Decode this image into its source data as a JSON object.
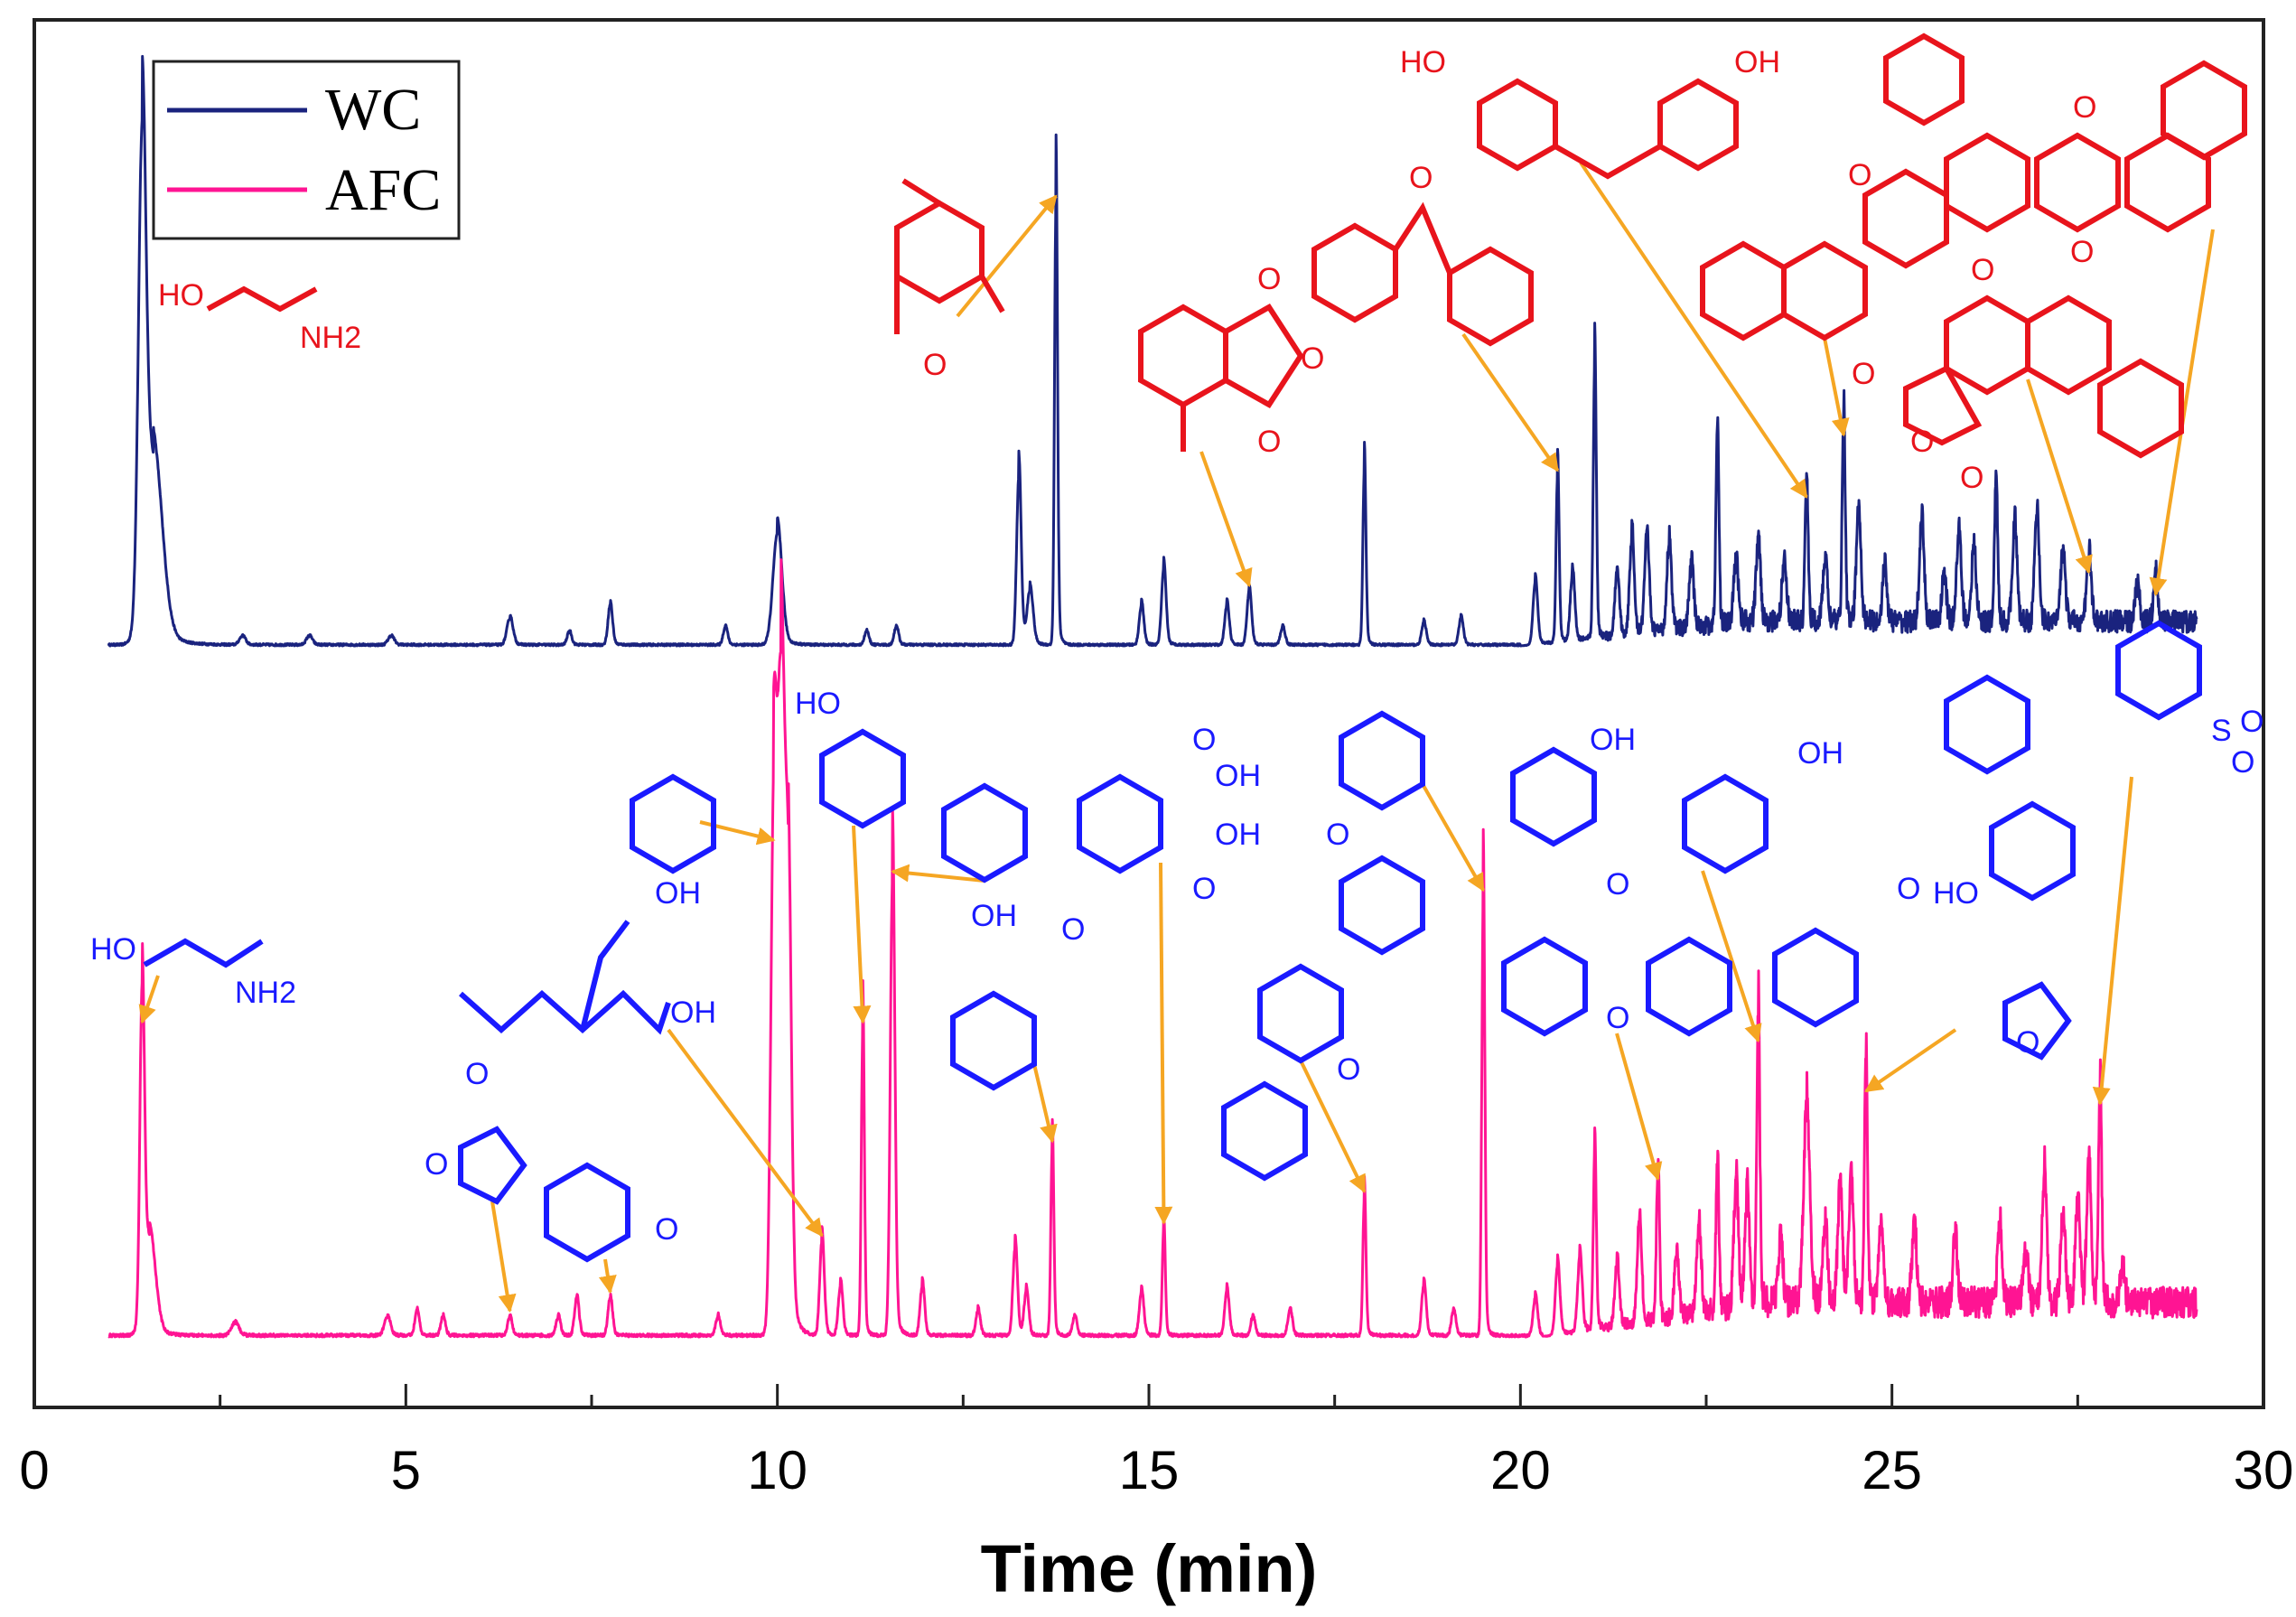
{
  "chart_data": {
    "type": "line",
    "title": "",
    "xlabel": "Time (min)",
    "ylabel": "",
    "xlim": [
      0,
      30
    ],
    "xticks": [
      "0",
      "5",
      "10",
      "15",
      "20",
      "25",
      "30"
    ],
    "grid": false,
    "legend_position": "top-left",
    "series": [
      {
        "name": "WC",
        "color": "#1a237e",
        "baseline": 0,
        "noise_start": 20.0,
        "peaks": [
          [
            1.45,
            100,
            0.05
          ],
          [
            1.6,
            40,
            0.12
          ],
          [
            2.8,
            2,
            0.04
          ],
          [
            3.7,
            2,
            0.04
          ],
          [
            4.8,
            2,
            0.04
          ],
          [
            6.4,
            6,
            0.04
          ],
          [
            7.2,
            3,
            0.03
          ],
          [
            7.75,
            9,
            0.03
          ],
          [
            9.3,
            4,
            0.03
          ],
          [
            10.0,
            25,
            0.06
          ],
          [
            11.2,
            3,
            0.03
          ],
          [
            11.6,
            4,
            0.03
          ],
          [
            13.25,
            38,
            0.03
          ],
          [
            13.4,
            12,
            0.04
          ],
          [
            13.75,
            100,
            0.02
          ],
          [
            14.9,
            9,
            0.03
          ],
          [
            15.2,
            17,
            0.03
          ],
          [
            16.05,
            9,
            0.03
          ],
          [
            16.35,
            12,
            0.03
          ],
          [
            16.8,
            4,
            0.03
          ],
          [
            17.9,
            40,
            0.02
          ],
          [
            18.7,
            5,
            0.03
          ],
          [
            19.2,
            6,
            0.03
          ],
          [
            20.2,
            14,
            0.03
          ],
          [
            20.5,
            38,
            0.02
          ],
          [
            20.7,
            15,
            0.03
          ],
          [
            21.0,
            62,
            0.02
          ],
          [
            21.3,
            14,
            0.03
          ],
          [
            21.5,
            22,
            0.03
          ],
          [
            21.7,
            22,
            0.03
          ],
          [
            22.0,
            20,
            0.03
          ],
          [
            22.3,
            14,
            0.03
          ],
          [
            22.65,
            43,
            0.02
          ],
          [
            22.9,
            14,
            0.03
          ],
          [
            23.2,
            18,
            0.03
          ],
          [
            23.55,
            14,
            0.03
          ],
          [
            23.85,
            32,
            0.02
          ],
          [
            24.1,
            14,
            0.03
          ],
          [
            24.35,
            46,
            0.02
          ],
          [
            24.55,
            25,
            0.03
          ],
          [
            24.9,
            12,
            0.03
          ],
          [
            25.4,
            22,
            0.03
          ],
          [
            25.7,
            10,
            0.03
          ],
          [
            25.9,
            20,
            0.03
          ],
          [
            26.1,
            16,
            0.03
          ],
          [
            26.4,
            32,
            0.02
          ],
          [
            26.65,
            22,
            0.03
          ],
          [
            26.95,
            24,
            0.03
          ],
          [
            27.3,
            16,
            0.03
          ],
          [
            27.65,
            15,
            0.03
          ],
          [
            28.3,
            8,
            0.03
          ],
          [
            28.55,
            10,
            0.03
          ]
        ]
      },
      {
        "name": "AFC",
        "color": "#ff1493",
        "baseline": 0,
        "noise_start": 20.3,
        "peaks": [
          [
            1.45,
            49,
            0.03
          ],
          [
            1.55,
            15,
            0.08
          ],
          [
            2.7,
            2,
            0.05
          ],
          [
            4.75,
            3,
            0.04
          ],
          [
            5.15,
            4,
            0.03
          ],
          [
            5.5,
            3,
            0.03
          ],
          [
            6.4,
            3,
            0.03
          ],
          [
            7.05,
            3,
            0.03
          ],
          [
            7.3,
            6,
            0.03
          ],
          [
            7.75,
            6,
            0.03
          ],
          [
            9.2,
            3,
            0.03
          ],
          [
            9.95,
            78,
            0.04
          ],
          [
            10.05,
            100,
            0.05
          ],
          [
            10.15,
            60,
            0.04
          ],
          [
            10.6,
            15,
            0.03
          ],
          [
            10.85,
            8,
            0.03
          ],
          [
            11.15,
            49,
            0.02
          ],
          [
            11.55,
            73,
            0.03
          ],
          [
            11.95,
            8,
            0.03
          ],
          [
            12.7,
            4,
            0.03
          ],
          [
            13.2,
            14,
            0.03
          ],
          [
            13.35,
            7,
            0.03
          ],
          [
            13.7,
            30,
            0.02
          ],
          [
            14.0,
            3,
            0.03
          ],
          [
            14.9,
            7,
            0.03
          ],
          [
            15.2,
            17,
            0.02
          ],
          [
            16.05,
            7,
            0.03
          ],
          [
            16.4,
            3,
            0.03
          ],
          [
            16.9,
            4,
            0.03
          ],
          [
            17.9,
            22,
            0.02
          ],
          [
            18.7,
            8,
            0.03
          ],
          [
            19.1,
            4,
            0.03
          ],
          [
            19.5,
            70,
            0.02
          ],
          [
            20.2,
            6,
            0.03
          ],
          [
            20.5,
            11,
            0.03
          ],
          [
            20.8,
            12,
            0.03
          ],
          [
            21.0,
            28,
            0.02
          ],
          [
            21.3,
            10,
            0.03
          ],
          [
            21.6,
            16,
            0.03
          ],
          [
            21.85,
            24,
            0.02
          ],
          [
            22.1,
            10,
            0.03
          ],
          [
            22.4,
            14,
            0.03
          ],
          [
            22.65,
            23,
            0.02
          ],
          [
            22.9,
            20,
            0.03
          ],
          [
            23.05,
            18,
            0.03
          ],
          [
            23.2,
            46,
            0.02
          ],
          [
            23.5,
            10,
            0.03
          ],
          [
            23.85,
            31,
            0.04
          ],
          [
            24.1,
            12,
            0.03
          ],
          [
            24.3,
            18,
            0.03
          ],
          [
            24.45,
            20,
            0.03
          ],
          [
            24.65,
            38,
            0.02
          ],
          [
            24.85,
            12,
            0.03
          ],
          [
            25.3,
            12,
            0.03
          ],
          [
            25.85,
            10,
            0.03
          ],
          [
            26.45,
            12,
            0.03
          ],
          [
            26.8,
            8,
            0.03
          ],
          [
            27.05,
            20,
            0.03
          ],
          [
            27.3,
            14,
            0.03
          ],
          [
            27.5,
            16,
            0.03
          ],
          [
            27.65,
            22,
            0.03
          ],
          [
            27.8,
            36,
            0.02
          ],
          [
            28.1,
            6,
            0.03
          ]
        ]
      }
    ],
    "annotations": {
      "WC": [
        {
          "compound": "2-aminoethanol",
          "labels": [
            "HO",
            "NH2"
          ],
          "peak_time": 1.45
        },
        {
          "compound": "2,5-dimethylbenzaldehyde",
          "labels": [
            "O"
          ],
          "peak_time": 13.75
        },
        {
          "compound": "3-methylphthalic anhydride",
          "labels": [
            "O",
            "O",
            "O"
          ],
          "peak_time": 16.35
        },
        {
          "compound": "9-fluorenone",
          "labels": [
            "O"
          ],
          "peak_time": 20.5
        },
        {
          "compound": "4,4'-dihydroxydiphenylmethane",
          "labels": [
            "HO",
            "OH"
          ],
          "peak_time": 23.85
        },
        {
          "compound": "benzo[h]flavone",
          "labels": [
            "O",
            "O"
          ],
          "peak_time": 24.35
        },
        {
          "compound": "phenanthrene-dicarboxylic anhydride",
          "labels": [
            "O",
            "O",
            "O"
          ],
          "peak_time": 27.65
        },
        {
          "compound": "benzo[a]xanthone",
          "labels": [
            "O",
            "O"
          ],
          "peak_time": 28.55
        }
      ],
      "AFC": [
        {
          "compound": "2-aminoethanol",
          "labels": [
            "HO",
            "NH2"
          ],
          "peak_time": 1.45
        },
        {
          "compound": "3-furaldehyde",
          "labels": [
            "O",
            "O"
          ],
          "peak_time": 6.4
        },
        {
          "compound": "anisole",
          "labels": [
            "O"
          ],
          "peak_time": 7.75
        },
        {
          "compound": "phenol",
          "labels": [
            "OH"
          ],
          "peak_time": 9.95
        },
        {
          "compound": "2-ethylhexanol",
          "labels": [
            "OH"
          ],
          "peak_time": 10.6
        },
        {
          "compound": "o-cresol",
          "labels": [
            "HO"
          ],
          "peak_time": 11.15
        },
        {
          "compound": "p-cresol",
          "labels": [
            "OH"
          ],
          "peak_time": 11.55
        },
        {
          "compound": "2,4-dimethylbenzaldehyde",
          "labels": [
            "O"
          ],
          "peak_time": 13.7
        },
        {
          "compound": "phthalic acid",
          "labels": [
            "O",
            "OH",
            "O",
            "OH"
          ],
          "peak_time": 15.2
        },
        {
          "compound": "dibenzofuran",
          "labels": [
            "O"
          ],
          "peak_time": 17.9
        },
        {
          "compound": "xanthene",
          "labels": [
            "O"
          ],
          "peak_time": 19.5
        },
        {
          "compound": "xanthone",
          "labels": [
            "O",
            "O"
          ],
          "peak_time": 21.85
        },
        {
          "compound": "2,4'-dihydroxydiphenylmethane",
          "labels": [
            "OH",
            "OH"
          ],
          "peak_time": 23.2
        },
        {
          "compound": "2-(furylmethylene)indanone",
          "labels": [
            "O",
            "O"
          ],
          "peak_time": 24.65
        },
        {
          "compound": "phenol-substituted benzothiophene dioxide",
          "labels": [
            "HO",
            "S",
            "O",
            "O"
          ],
          "peak_time": 27.8
        }
      ]
    }
  }
}
